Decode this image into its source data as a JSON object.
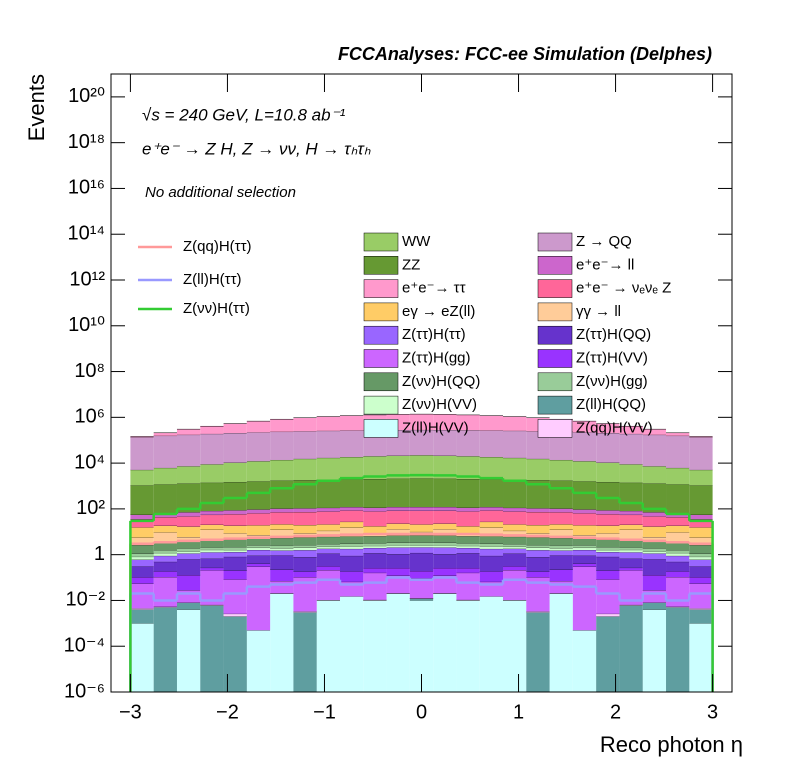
{
  "chart_data": {
    "type": "stacked_histogram",
    "title": "FCCAnalyses: FCC-ee Simulation (Delphes)",
    "annotations": [
      "√s = 240 GeV, L=10.8 ab⁻¹",
      "e⁺e⁻ → Z H, Z → νν, H → τₕτₕ",
      "No additional selection"
    ],
    "x_label": "Reco photon η",
    "y_label": "Events",
    "log_y": true,
    "xlim": [
      -3.2,
      3.2
    ],
    "ylim": [
      1e-06,
      1e+21
    ],
    "xticks": [
      {
        "value": -3,
        "label": "−3"
      },
      {
        "value": -2,
        "label": "−2"
      },
      {
        "value": -1,
        "label": "−1"
      },
      0,
      1,
      2,
      3
    ],
    "yticks": [
      {
        "value": 1e-06,
        "label": "10⁻⁶"
      },
      {
        "value": 0.0001,
        "label": "10⁻⁴"
      },
      {
        "value": 0.01,
        "label": "10⁻²"
      },
      1,
      {
        "value": 100,
        "label": "10²"
      },
      {
        "value": 10000.0,
        "label": "10⁴"
      },
      {
        "value": 1000000.0,
        "label": "10⁶"
      },
      {
        "value": 100000000.0,
        "label": "10⁸"
      },
      {
        "value": 10000000000.0,
        "label": "10¹⁰"
      },
      {
        "value": 1000000000000.0,
        "label": "10¹²"
      },
      {
        "value": 100000000000000.0,
        "label": "10¹⁴"
      },
      {
        "value": 1e+16,
        "label": "10¹⁶"
      },
      {
        "value": 1e+18,
        "label": "10¹⁸"
      },
      {
        "value": 1e+20,
        "label": "10²⁰"
      }
    ],
    "bins": [
      -3,
      -2.76,
      -2.52,
      -2.28,
      -2.04,
      -1.8,
      -1.56,
      -1.32,
      -1.08,
      -0.84,
      -0.6,
      -0.36,
      -0.12,
      0.12,
      0.36,
      0.6,
      0.84,
      1.08,
      1.32,
      1.56,
      1.8,
      2.04,
      2.28,
      2.52,
      2.76,
      3
    ],
    "series": [
      {
        "name": "Z(ll)H(VV)",
        "color": "#ccffff",
        "values": [
          0.001,
          0,
          0.004,
          0,
          0,
          0.0005,
          0.02,
          0,
          0.01,
          0.015,
          0.01,
          0.02,
          0.01,
          0.02,
          0.01,
          0.015,
          0.01,
          0,
          0.02,
          0.0005,
          0,
          0,
          0.004,
          0,
          0.001
        ]
      },
      {
        "name": "Z(ll)H(QQ)",
        "color": "#5f9ea0",
        "values": [
          0.003,
          0.005,
          0.004,
          0.006,
          0.002,
          0,
          0,
          0.003,
          0,
          0,
          0.0001,
          0,
          0.002,
          0,
          0.0001,
          0,
          0,
          0.003,
          0,
          0,
          0.002,
          0.006,
          0.004,
          0.005,
          0.003
        ]
      },
      {
        "name": "Z(qq)H(VV)",
        "color": "#ffccff",
        "values": [
          0.0005,
          0.0003,
          0,
          0.0004,
          0.0006,
          0,
          0.0005,
          0.0003,
          0.0004,
          0,
          0.0005,
          0.0006,
          0.0004,
          0.0006,
          0.0005,
          0,
          0.0004,
          0.0003,
          0.0005,
          0,
          0.0006,
          0.0004,
          0,
          0.0003,
          0.0005
        ]
      },
      {
        "name": "Z(ττ)H(gg)",
        "color": "#cc66ff",
        "values": [
          0.05,
          0.1,
          0.02,
          0.2,
          0.08,
          0.3,
          0.05,
          0.1,
          0.2,
          0.05,
          0.15,
          0.1,
          0.08,
          0.1,
          0.15,
          0.05,
          0.2,
          0.1,
          0.05,
          0.3,
          0.08,
          0.2,
          0.02,
          0.1,
          0.05
        ]
      },
      {
        "name": "Z(ττ)H(VV)",
        "color": "#9933ff",
        "values": [
          0.05,
          0.08,
          0.1,
          0.06,
          0.12,
          0.1,
          0.15,
          0.08,
          0.1,
          0.12,
          0.1,
          0.14,
          0.1,
          0.14,
          0.1,
          0.12,
          0.1,
          0.08,
          0.15,
          0.1,
          0.12,
          0.06,
          0.1,
          0.08,
          0.05
        ]
      },
      {
        "name": "Z(ττ)H(QQ)",
        "color": "#6633cc",
        "values": [
          0.2,
          0.3,
          0.5,
          0.4,
          0.6,
          0.5,
          0.7,
          0.6,
          0.8,
          0.7,
          0.9,
          0.8,
          1,
          0.8,
          0.9,
          0.7,
          0.8,
          0.6,
          0.7,
          0.5,
          0.6,
          0.4,
          0.5,
          0.3,
          0.2
        ]
      },
      {
        "name": "Z(ττ)H(ττ)",
        "color": "#9966ff",
        "values": [
          0.3,
          0.4,
          0.5,
          0.6,
          0.5,
          0.7,
          0.6,
          0.8,
          0.7,
          0.9,
          0.8,
          1,
          0.9,
          1,
          0.8,
          0.9,
          0.7,
          0.8,
          0.6,
          0.7,
          0.5,
          0.6,
          0.5,
          0.4,
          0.3
        ]
      },
      {
        "name": "Z(νν)H(VV)",
        "color": "#ccffcc",
        "values": [
          0.2,
          0.3,
          0.25,
          0.35,
          0.3,
          0.4,
          0.35,
          0.45,
          0.4,
          0.5,
          0.45,
          0.5,
          0.5,
          0.5,
          0.45,
          0.5,
          0.4,
          0.45,
          0.35,
          0.4,
          0.3,
          0.35,
          0.25,
          0.3,
          0.2
        ]
      },
      {
        "name": "Z(νν)H(gg)",
        "color": "#99cc99",
        "values": [
          0.3,
          0.4,
          0.5,
          0.45,
          0.55,
          0.6,
          0.65,
          0.6,
          0.7,
          0.75,
          0.7,
          0.8,
          0.8,
          0.8,
          0.7,
          0.75,
          0.7,
          0.6,
          0.65,
          0.6,
          0.55,
          0.45,
          0.5,
          0.4,
          0.3
        ]
      },
      {
        "name": "Z(νν)H(QQ)",
        "color": "#669966",
        "values": [
          1.5,
          1.8,
          2,
          2.2,
          2.4,
          2.6,
          2.8,
          3,
          3.1,
          3.2,
          3.3,
          3.4,
          3.5,
          3.4,
          3.3,
          3.2,
          3.1,
          3,
          2.8,
          2.6,
          2.4,
          2.2,
          2,
          1.8,
          1.5
        ]
      },
      {
        "name": "γγ → ll",
        "color": "#ffcc99",
        "values": [
          3,
          6,
          2,
          8,
          4,
          2,
          7,
          3,
          5,
          9,
          2,
          6,
          3,
          6,
          2,
          9,
          5,
          3,
          7,
          2,
          4,
          8,
          2,
          6,
          3
        ]
      },
      {
        "name": "eγ → eZ(ll)",
        "color": "#ffcc66",
        "values": [
          10,
          9,
          11,
          8,
          10,
          12,
          9,
          11,
          10,
          12,
          9,
          10,
          11,
          10,
          9,
          12,
          10,
          11,
          9,
          12,
          10,
          8,
          11,
          9,
          10
        ]
      },
      {
        "name": "e⁺e⁻ → νₑνₑ Z",
        "color": "#ff6699",
        "values": [
          20,
          25,
          30,
          35,
          40,
          45,
          50,
          53,
          56,
          58,
          60,
          61,
          62,
          61,
          60,
          58,
          56,
          53,
          50,
          45,
          40,
          35,
          30,
          25,
          20
        ]
      },
      {
        "name": "e⁺e⁻→ ll",
        "color": "#cc66cc",
        "values": [
          20,
          22,
          24,
          26,
          28,
          30,
          32,
          33,
          34,
          35,
          36,
          37,
          38,
          37,
          36,
          35,
          34,
          33,
          32,
          30,
          28,
          26,
          24,
          22,
          20
        ]
      },
      {
        "name": "ZZ",
        "color": "#669933",
        "values": [
          1000,
          1100,
          1200,
          1300,
          1400,
          1500,
          1600,
          1700,
          1800,
          1850,
          1900,
          1950,
          2000,
          1950,
          1900,
          1850,
          1800,
          1700,
          1600,
          1500,
          1400,
          1300,
          1200,
          1100,
          1000
        ]
      },
      {
        "name": "WW",
        "color": "#99cc66",
        "values": [
          4000,
          5000,
          6000,
          7500,
          9000,
          10500,
          12000,
          13500,
          15000,
          16500,
          18000,
          19000,
          20000,
          19000,
          18000,
          16500,
          15000,
          13500,
          12000,
          10500,
          9000,
          7500,
          6000,
          5000,
          4000
        ]
      },
      {
        "name": "Z → QQ",
        "color": "#cc99cc",
        "values": [
          130000,
          150000,
          165000,
          180000,
          195000,
          208000,
          220000,
          230000,
          240000,
          248000,
          254000,
          258000,
          260000,
          258000,
          254000,
          248000,
          240000,
          230000,
          220000,
          208000,
          195000,
          180000,
          165000,
          150000,
          130000
        ]
      },
      {
        "name": "e⁺e⁻→ ττ",
        "color": "#ff99cc",
        "values": [
          11000,
          55000,
          132000,
          220000,
          330000,
          462000,
          594000,
          715000,
          825000,
          924000,
          1001000,
          1067000,
          1100000,
          1067000,
          1001000,
          924000,
          825000,
          715000,
          594000,
          462000,
          330000,
          220000,
          132000,
          55000,
          11000
        ]
      }
    ],
    "signals": [
      {
        "name": "Z(qq)H(ττ)",
        "color": "#ff9999",
        "values": [
          3,
          3.5,
          4,
          4.5,
          5,
          5.5,
          6,
          6.5,
          7,
          7.5,
          8,
          8,
          8,
          8,
          8,
          7.5,
          7,
          6.5,
          6,
          5.5,
          5,
          4.5,
          4,
          3.5,
          3
        ]
      },
      {
        "name": "Z(ll)H(ττ)",
        "color": "#9999ff",
        "values": [
          0.02,
          0.01,
          0.02,
          0.01,
          0.02,
          0.04,
          0.05,
          0.06,
          0.08,
          0.05,
          0.06,
          0.1,
          0.08,
          0.1,
          0.06,
          0.05,
          0.08,
          0.06,
          0.05,
          0.04,
          0.02,
          0.01,
          0.02,
          0.01,
          0.02
        ]
      },
      {
        "name": "Z(νν)H(ττ)",
        "color": "#33cc33",
        "values": [
          30,
          60,
          100,
          180,
          300,
          500,
          800,
          1200,
          1700,
          2200,
          2600,
          2900,
          3000,
          2900,
          2600,
          2200,
          1700,
          1200,
          800,
          500,
          300,
          180,
          100,
          60,
          30
        ]
      }
    ]
  }
}
